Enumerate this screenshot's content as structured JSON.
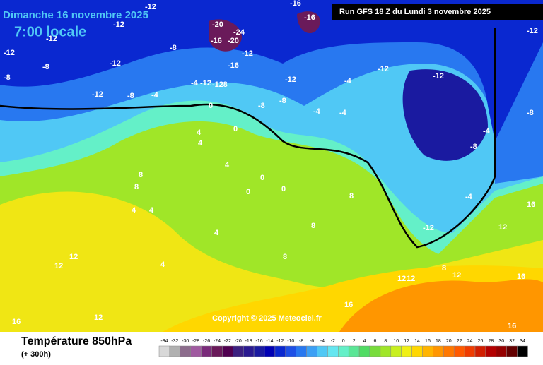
{
  "header": {
    "date": "Dimanche 16 novembre 2025",
    "time": "7:00 locale",
    "run": "Run GFS 18 Z du Lundi 3 novembre 2025"
  },
  "map": {
    "copyright": "Copyright © 2025 Meteociel.fr",
    "labels": [
      "-12",
      "-16",
      "-16",
      "-12",
      "-12",
      "-8",
      "-12",
      "-8",
      "-20",
      "-24",
      "-16",
      "-20",
      "-12",
      "-16",
      "-12",
      "-8",
      "-4",
      "-12",
      "-12",
      "-8",
      "-8",
      "-12",
      "-12",
      "-8",
      "-4",
      "-4",
      "-4",
      "-8",
      "-12",
      "-12",
      "-12",
      "-8",
      "-4",
      "-4",
      "0",
      "4",
      "4",
      "0",
      "4",
      "8",
      "8",
      "4",
      "4",
      "0",
      "0",
      "0",
      "4",
      "8",
      "8",
      "4",
      "12",
      "12",
      "12",
      "16",
      "12",
      "16",
      "16",
      "8",
      "12",
      "12",
      "16",
      "-8",
      "-4",
      "-12",
      "16",
      "12",
      "8"
    ]
  },
  "footer": {
    "title": "Température 850hPa",
    "lead": "(+ 300h)"
  },
  "scale": {
    "ticks": [
      -34,
      -32,
      -30,
      -28,
      -26,
      -24,
      -22,
      -20,
      -18,
      -16,
      -14,
      -12,
      -10,
      -8,
      -6,
      -4,
      -2,
      0,
      2,
      4,
      6,
      8,
      10,
      12,
      14,
      16,
      18,
      20,
      22,
      24,
      26,
      28,
      30,
      32,
      34
    ],
    "colors": [
      "#d8d8d8",
      "#b0b0b0",
      "#8c6c8c",
      "#a05aa0",
      "#7a2a7a",
      "#6a1a5a",
      "#500050",
      "#3c2080",
      "#2a1a90",
      "#1a1aa0",
      "#0000b4",
      "#0a28d0",
      "#1e50e6",
      "#2878f0",
      "#3ca0f5",
      "#50c8f5",
      "#64e6f0",
      "#64f0c8",
      "#5ae696",
      "#50dc64",
      "#78dc3c",
      "#a0e628",
      "#c8f01e",
      "#f0f014",
      "#ffd700",
      "#ffb400",
      "#ff9600",
      "#ff7800",
      "#ff5a00",
      "#f03c00",
      "#d21e00",
      "#b40000",
      "#960000",
      "#640000",
      "#000000"
    ]
  }
}
